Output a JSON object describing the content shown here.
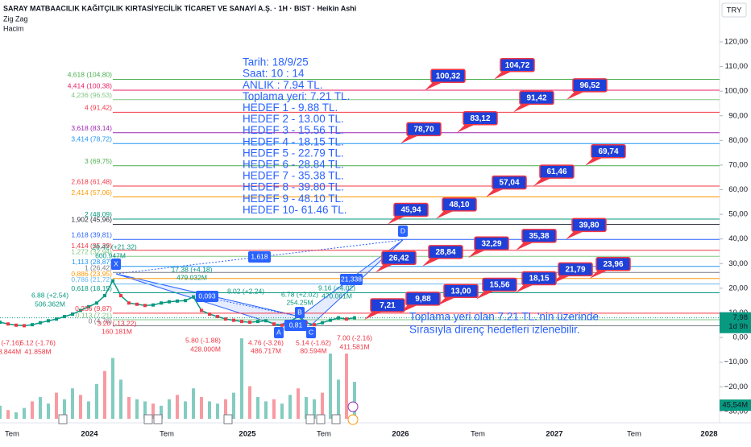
{
  "header": {
    "symbol": "SARAY MATBAACILIK KAĞITÇILIK KIRTASİYECİLİK TİCARET VE SANAYİ A.Ş. · 1H · BIST · Heikin Ashi",
    "indicators": [
      "Zig Zag",
      "Hacim"
    ],
    "currency": "TRY"
  },
  "price_axis": {
    "ylim": [
      -33,
      137
    ],
    "ticks": [
      {
        "value": 120,
        "label": "120,00"
      },
      {
        "value": 110,
        "label": "110,00"
      },
      {
        "value": 100,
        "label": "100,00"
      },
      {
        "value": 90,
        "label": "90,00"
      },
      {
        "value": 80,
        "label": "80,00"
      },
      {
        "value": 70,
        "label": "70,00"
      },
      {
        "value": 60,
        "label": "60,00"
      },
      {
        "value": 50,
        "label": "50,00"
      },
      {
        "value": 40,
        "label": "40,00"
      },
      {
        "value": 30,
        "label": "30,00"
      },
      {
        "value": 20,
        "label": "20,00"
      },
      {
        "value": 10,
        "label": "10,00"
      },
      {
        "value": 0,
        "label": "0,00"
      },
      {
        "value": -10,
        "label": "−10,00"
      },
      {
        "value": -20,
        "label": "−20,00"
      },
      {
        "value": -30,
        "label": "−30,00"
      }
    ]
  },
  "time_axis": {
    "labels": [
      "Tem",
      "2024",
      "Tem",
      "2025",
      "Tem",
      "2026",
      "Tem",
      "2027",
      "Tem",
      "2028"
    ]
  },
  "price": {
    "values": [
      6.2,
      5.5,
      5,
      4.8,
      5.2,
      6,
      6.8,
      7.5,
      8.5,
      9.5,
      11,
      12.5,
      14,
      17,
      23,
      17,
      14,
      13.5,
      13,
      13.2,
      14,
      14.5,
      14.8,
      15,
      16.5,
      11,
      9.5,
      8.5,
      7.5,
      7,
      6.5,
      6.2,
      6.5,
      6.8,
      5.5,
      5,
      6.5,
      8.5,
      6,
      5.2,
      6,
      7,
      8,
      7.5,
      8
    ]
  },
  "volume": {
    "values": [
      6,
      4,
      3,
      5,
      8,
      10,
      7,
      12,
      9,
      14,
      11,
      8,
      16,
      22,
      28,
      18,
      10,
      9,
      8,
      7,
      6,
      9,
      11,
      8,
      14,
      10,
      8,
      7,
      9,
      12,
      37,
      15,
      10,
      8,
      9,
      7,
      11,
      14,
      10,
      9,
      12,
      30,
      18,
      30,
      17
    ]
  },
  "current_price": {
    "value": 7.98,
    "label": "7,98",
    "countdown": "1d 9h"
  },
  "current_volume": {
    "label": "45,54M"
  },
  "fib_levels": [
    {
      "label": "4,618 (104,80)",
      "value": 104.8,
      "color": "#4caf50"
    },
    {
      "label": "4,414 (100,38)",
      "value": 100.38,
      "color": "#e91e63"
    },
    {
      "label": "4,236 (96,53)",
      "value": 96.53,
      "color": "#81c784"
    },
    {
      "label": "4 (91,42)",
      "value": 91.42,
      "color": "#f23645"
    },
    {
      "label": "3,618 (83,14)",
      "value": 83.14,
      "color": "#9c27b0"
    },
    {
      "label": "3,414 (78,72)",
      "value": 78.72,
      "color": "#2196f3"
    },
    {
      "label": "3 (69,75)",
      "value": 69.75,
      "color": "#4caf50"
    },
    {
      "label": "2,618 (61,48)",
      "value": 61.48,
      "color": "#f23645"
    },
    {
      "label": "2,414 (57,06)",
      "value": 57.06,
      "color": "#ff9800"
    },
    {
      "label": "2 (48,09)",
      "value": 48.09,
      "color": "#089981"
    },
    {
      "label": "1,902 (45,96)",
      "value": 45.96,
      "color": "#2a2e39"
    },
    {
      "label": "1,618 (39,81)",
      "value": 39.81,
      "color": "#2962ff"
    },
    {
      "label": "1,414 (35,39)",
      "value": 35.39,
      "color": "#f23645"
    },
    {
      "label": "1,272 (32,94)",
      "value": 32.94,
      "color": "#81c784"
    },
    {
      "label": "1,113 (28,87)",
      "value": 28.87,
      "color": "#2196f3"
    },
    {
      "label": "1 (26,42)",
      "value": 26.42,
      "color": "#787b86"
    },
    {
      "label": "0,886 (23,95)",
      "value": 23.95,
      "color": "#ff9800"
    },
    {
      "label": "0,786 (21,72)",
      "value": 21.72,
      "color": "#64b5f6"
    },
    {
      "label": "0,618 (18,15)",
      "value": 18.15,
      "color": "#089981"
    },
    {
      "label": "0,236 (9,87)",
      "value": 9.87,
      "color": "#f23645"
    },
    {
      "label": "0,113 (7,21)",
      "value": 7.21,
      "color": "#81c784"
    },
    {
      "label": "0 (4,76)",
      "value": 4.76,
      "color": "#787b86"
    }
  ],
  "info_box": {
    "lines": [
      "Tarih:    18/9/25",
      "Saat:      10 : 14",
      "ANLIK :  7.94 TL.",
      "Toplama yeri: 7.21 TL.",
      "HEDEF  1 - 9.88 TL.",
      "HEDEF  2 - 13.00 TL.",
      "HEDEF  3 - 15.56 TL.",
      "HEDEF  4 - 18.15 TL.",
      "HEDEF  5 - 22.79 TL.",
      "HEDEF  6 - 28.84 TL.",
      "HEDEF  7 - 35.38 TL.",
      "HEDEF  8 - 39.80 TL.",
      "HEDEF  9 - 48.10 TL.",
      "HEDEF 10- 61.46 TL."
    ]
  },
  "targets": [
    {
      "label": "100,32",
      "value": 100.32
    },
    {
      "label": "104,72",
      "value": 104.72
    },
    {
      "label": "96,52",
      "value": 96.52
    },
    {
      "label": "91,42",
      "value": 91.42
    },
    {
      "label": "78,70",
      "value": 78.7
    },
    {
      "label": "83,12",
      "value": 83.12
    },
    {
      "label": "69,74",
      "value": 69.74
    },
    {
      "label": "61,46",
      "value": 61.46
    },
    {
      "label": "57,04",
      "value": 57.04
    },
    {
      "label": "48,10",
      "value": 48.1
    },
    {
      "label": "45,94",
      "value": 45.94
    },
    {
      "label": "39,80",
      "value": 39.8
    },
    {
      "label": "35,38",
      "value": 35.38
    },
    {
      "label": "32,29",
      "value": 32.29
    },
    {
      "label": "28,84",
      "value": 28.84
    },
    {
      "label": "26,42",
      "value": 26.42
    },
    {
      "label": "23,96",
      "value": 23.96
    },
    {
      "label": "21,79",
      "value": 21.79
    },
    {
      "label": "18,15",
      "value": 18.15
    },
    {
      "label": "15,56",
      "value": 15.56
    },
    {
      "label": "13,00",
      "value": 13
    },
    {
      "label": "9,88",
      "value": 9.88
    },
    {
      "label": "7,21",
      "value": 7.21
    }
  ],
  "zigzag_labels": [
    {
      "text": "6.88 (+2.54)",
      "color": "#089981"
    },
    {
      "text": "506.362M",
      "color": "#089981"
    },
    {
      "text": "5.12 (-1.76)",
      "color": "#f23645"
    },
    {
      "text": "41.858M",
      "color": "#f23645"
    },
    {
      "text": "(-7.16)",
      "color": "#f23645"
    },
    {
      "text": "8.844M",
      "color": "#f23645"
    },
    {
      "text": "26.42 (+21.32)",
      "color": "#089981"
    },
    {
      "text": "600.947M",
      "color": "#089981"
    },
    {
      "text": "3.20 (-13.22)",
      "color": "#f23645"
    },
    {
      "text": "160.181M",
      "color": "#f23645"
    },
    {
      "text": "17.38 (+4.18)",
      "color": "#089981"
    },
    {
      "text": "479.032M",
      "color": "#089981"
    },
    {
      "text": "8.02 (+2.24)",
      "color": "#089981"
    },
    {
      "text": "6.78 (+2.02)",
      "color": "#089981"
    },
    {
      "text": "254.25M",
      "color": "#089981"
    },
    {
      "text": "9.16 (+4.02)",
      "color": "#089981"
    },
    {
      "text": "470.061M",
      "color": "#089981"
    },
    {
      "text": "5.80 (-1.88)",
      "color": "#f23645"
    },
    {
      "text": "428.000M",
      "color": "#f23645"
    },
    {
      "text": "4.76 (-3.26)",
      "color": "#f23645"
    },
    {
      "text": "486.717M",
      "color": "#f23645"
    },
    {
      "text": "5.14 (-1.62)",
      "color": "#f23645"
    },
    {
      "text": "80.594M",
      "color": "#f23645"
    },
    {
      "text": "7.00 (-2.16)",
      "color": "#f23645"
    },
    {
      "text": "411.581M",
      "color": "#f23645"
    }
  ],
  "pattern_points": [
    "X",
    "A",
    "B",
    "C",
    "D"
  ],
  "ratio_labels": [
    "1,618",
    "21,338",
    "0,093",
    "0,81"
  ],
  "footer_note": [
    "Toplama yeri olan 7.21 TL.'nin üzerinde",
    "Sırasıyla direnç hedefleri izlenebilir."
  ]
}
